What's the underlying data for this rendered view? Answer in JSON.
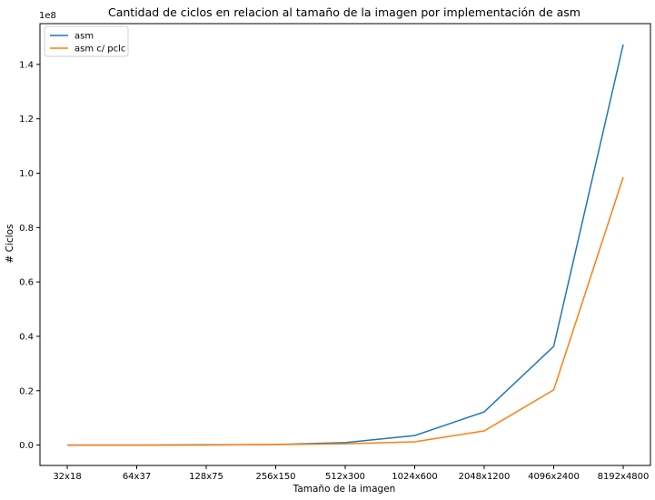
{
  "chart_data": {
    "type": "line",
    "title": "Cantidad de ciclos en relacion al tamaño de la imagen por implementación de asm",
    "xlabel": "Tamaño de la imagen",
    "ylabel": "# Ciclos",
    "y_multiplier_label": "1e8",
    "categories": [
      "32x18",
      "64x37",
      "128x75",
      "256x150",
      "512x300",
      "1024x600",
      "2048x1200",
      "4096x2400",
      "8192x4800"
    ],
    "ylim": [
      -0.075,
      1.55
    ],
    "yticks": [
      "0.0",
      "0.2",
      "0.4",
      "0.6",
      "0.8",
      "1.0",
      "1.2",
      "1.4"
    ],
    "grid": false,
    "legend_position": "top-left",
    "series": [
      {
        "name": "asm",
        "color": "#1f77b4",
        "values": [
          0.0,
          0.0,
          0.001,
          0.002,
          0.009,
          0.035,
          0.122,
          0.363,
          1.473
        ]
      },
      {
        "name": "asm c/ pclc",
        "color": "#ff7f0e",
        "values": [
          0.0,
          0.0,
          0.0,
          0.002,
          0.005,
          0.012,
          0.052,
          0.203,
          0.985
        ]
      }
    ]
  }
}
